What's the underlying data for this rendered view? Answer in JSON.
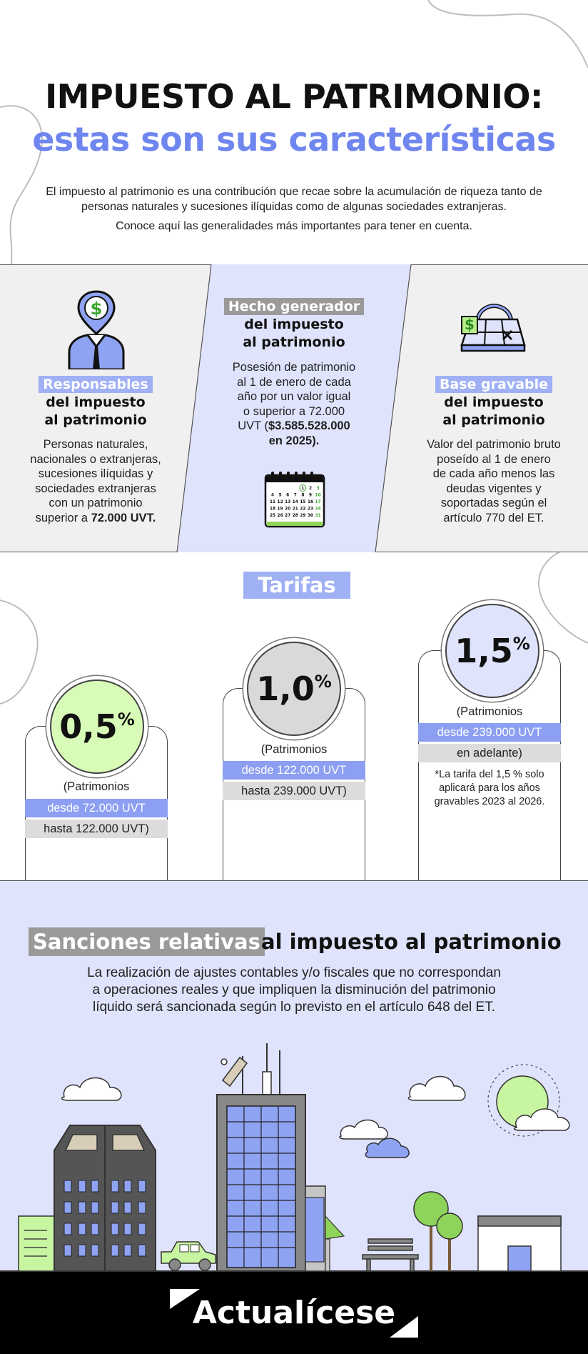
{
  "header": {
    "title_line1": "IMPUESTO AL PATRIMONIO:",
    "title_line2": "estas son sus características",
    "intro_1": "El impuesto al patrimonio es una contribución que recae sobre la acumulación de riqueza tanto de personas naturales y sucesiones ilíquidas como de algunas sociedades extranjeras.",
    "intro_2": "Conoce aquí las generalidades más importantes para tener en cuenta."
  },
  "features": {
    "responsables": {
      "tag": "Responsables",
      "subtitle_1": "del impuesto",
      "subtitle_2": "al patrimonio",
      "body_1": "Personas naturales,",
      "body_2": "nacionales o extranjeras,",
      "body_3": "sucesiones ilíquidas y",
      "body_4": "sociedades extranjeras",
      "body_5": "con un patrimonio",
      "body_6_pre": "superior a ",
      "body_6_bold": "72.000 UVT.",
      "icon": "person-dollar-icon"
    },
    "hecho": {
      "tag": "Hecho generador",
      "subtitle_1": "del impuesto",
      "subtitle_2": "al patrimonio",
      "body_1": "Posesión de patrimonio",
      "body_2": "al 1 de enero de cada",
      "body_3": "año por un valor igual",
      "body_4": "o superior a 72.000",
      "body_5_pre": "UVT (",
      "body_5_bold": "$3.585.528.000",
      "body_6_bold": "en 2025).",
      "icon": "calendar-icon",
      "calendar_rows": [
        [
          "",
          "",
          "",
          "",
          "1",
          "2",
          "3"
        ],
        [
          "4",
          "5",
          "6",
          "7",
          "8",
          "9",
          "10"
        ],
        [
          "11",
          "12",
          "13",
          "14",
          "15",
          "16",
          "17"
        ],
        [
          "18",
          "19",
          "20",
          "21",
          "22",
          "23",
          "24"
        ],
        [
          "25",
          "26",
          "27",
          "28",
          "29",
          "30",
          "31"
        ]
      ]
    },
    "base": {
      "tag": "Base gravable",
      "subtitle_1": "del impuesto",
      "subtitle_2": "al patrimonio",
      "body_1": "Valor del patrimonio bruto",
      "body_2": "poseído al 1 de enero",
      "body_3": "de cada año menos las",
      "body_4": "deudas vigentes y",
      "body_5": "soportadas según el",
      "body_6": "artículo 770 del ET.",
      "icon": "money-bag-icon"
    }
  },
  "tarifas": {
    "title": "Tarifas",
    "t1": {
      "rate": "0,5",
      "pct": "%",
      "line1": "(Patrimonios",
      "line2": "desde 72.000 UVT",
      "line3": "hasta 122.000 UVT)"
    },
    "t2": {
      "rate": "1,0",
      "pct": "%",
      "line1": "(Patrimonios",
      "line2": "desde 122.000 UVT",
      "line3": "hasta 239.000 UVT)"
    },
    "t3": {
      "rate": "1,5",
      "pct": "%",
      "line1": "(Patrimonios",
      "line2": "desde 239.000 UVT",
      "line3": "en adelante)",
      "note_1": "*La tarifa del 1,5 % solo",
      "note_2": "aplicará para los años",
      "note_3": "gravables 2023 al 2026."
    },
    "colors": {
      "green": "#d8fbb8",
      "gray": "#d9d9d9",
      "blue": "#dfe3fb"
    }
  },
  "sanciones": {
    "tag": "Sanciones relativas",
    "title_rest": "al impuesto al patrimonio",
    "body_1": "La realización de ajustes contables y/o fiscales que no correspondan",
    "body_2": "a operaciones reales y que impliquen la disminución del patrimonio",
    "body_3": "líquido será sancionada según lo previsto en el artículo 648 del ET."
  },
  "footer": {
    "brand": "Actualícese"
  },
  "colors": {
    "accent_blue": "#6f86ef",
    "light_blue": "#9fb0f5",
    "pale_blue": "#dfe3fb",
    "green": "#b7f08a"
  }
}
